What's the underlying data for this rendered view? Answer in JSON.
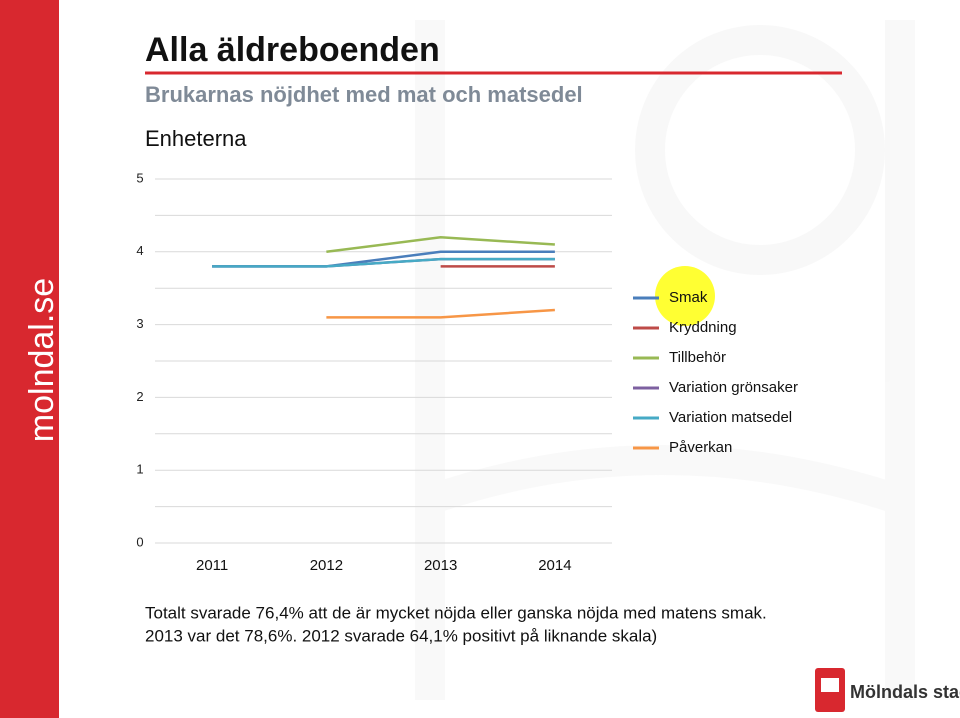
{
  "header": {
    "title": "Alla äldreboenden",
    "subtitle": "Brukarnas nöjdhet med mat och matsedel",
    "section": "Enheterna"
  },
  "sidebar": {
    "text": "molndal.se"
  },
  "chart_data": {
    "type": "line",
    "categories": [
      "2011",
      "2012",
      "2013",
      "2014"
    ],
    "series": [
      {
        "name": "Smak",
        "color": "#4a7ebb",
        "values": [
          3.8,
          3.8,
          4.0,
          4.0
        ]
      },
      {
        "name": "Kryddning",
        "color": "#be4b48",
        "values": [
          null,
          null,
          3.8,
          3.8
        ]
      },
      {
        "name": "Tillbehör",
        "color": "#98b954",
        "values": [
          null,
          4.0,
          4.2,
          4.1
        ]
      },
      {
        "name": "Variation grönsaker",
        "color": "#7d60a0",
        "values": [
          3.8,
          3.8,
          3.9,
          3.9
        ]
      },
      {
        "name": "Variation matsedel",
        "color": "#46aac5",
        "values": [
          3.8,
          3.8,
          3.9,
          3.9
        ]
      },
      {
        "name": "Påverkan",
        "color": "#f79646",
        "values": [
          null,
          3.1,
          3.1,
          3.2
        ]
      }
    ],
    "ylim": [
      0,
      5
    ],
    "yticks": [
      0,
      1,
      2,
      3,
      4,
      5
    ],
    "yminorticks": [
      0.5,
      1.5,
      2.5,
      3.5,
      4.5
    ],
    "grid": true,
    "legend": "right"
  },
  "footer": {
    "lines": [
      "Totalt svarade 76,4% att de är mycket nöjda eller ganska nöjda med matens smak.",
      "2013 var det 78,6%. 2012 svarade 64,1% positivt på liknande skala)"
    ]
  },
  "logo": {
    "text": "Mölndals stad"
  }
}
